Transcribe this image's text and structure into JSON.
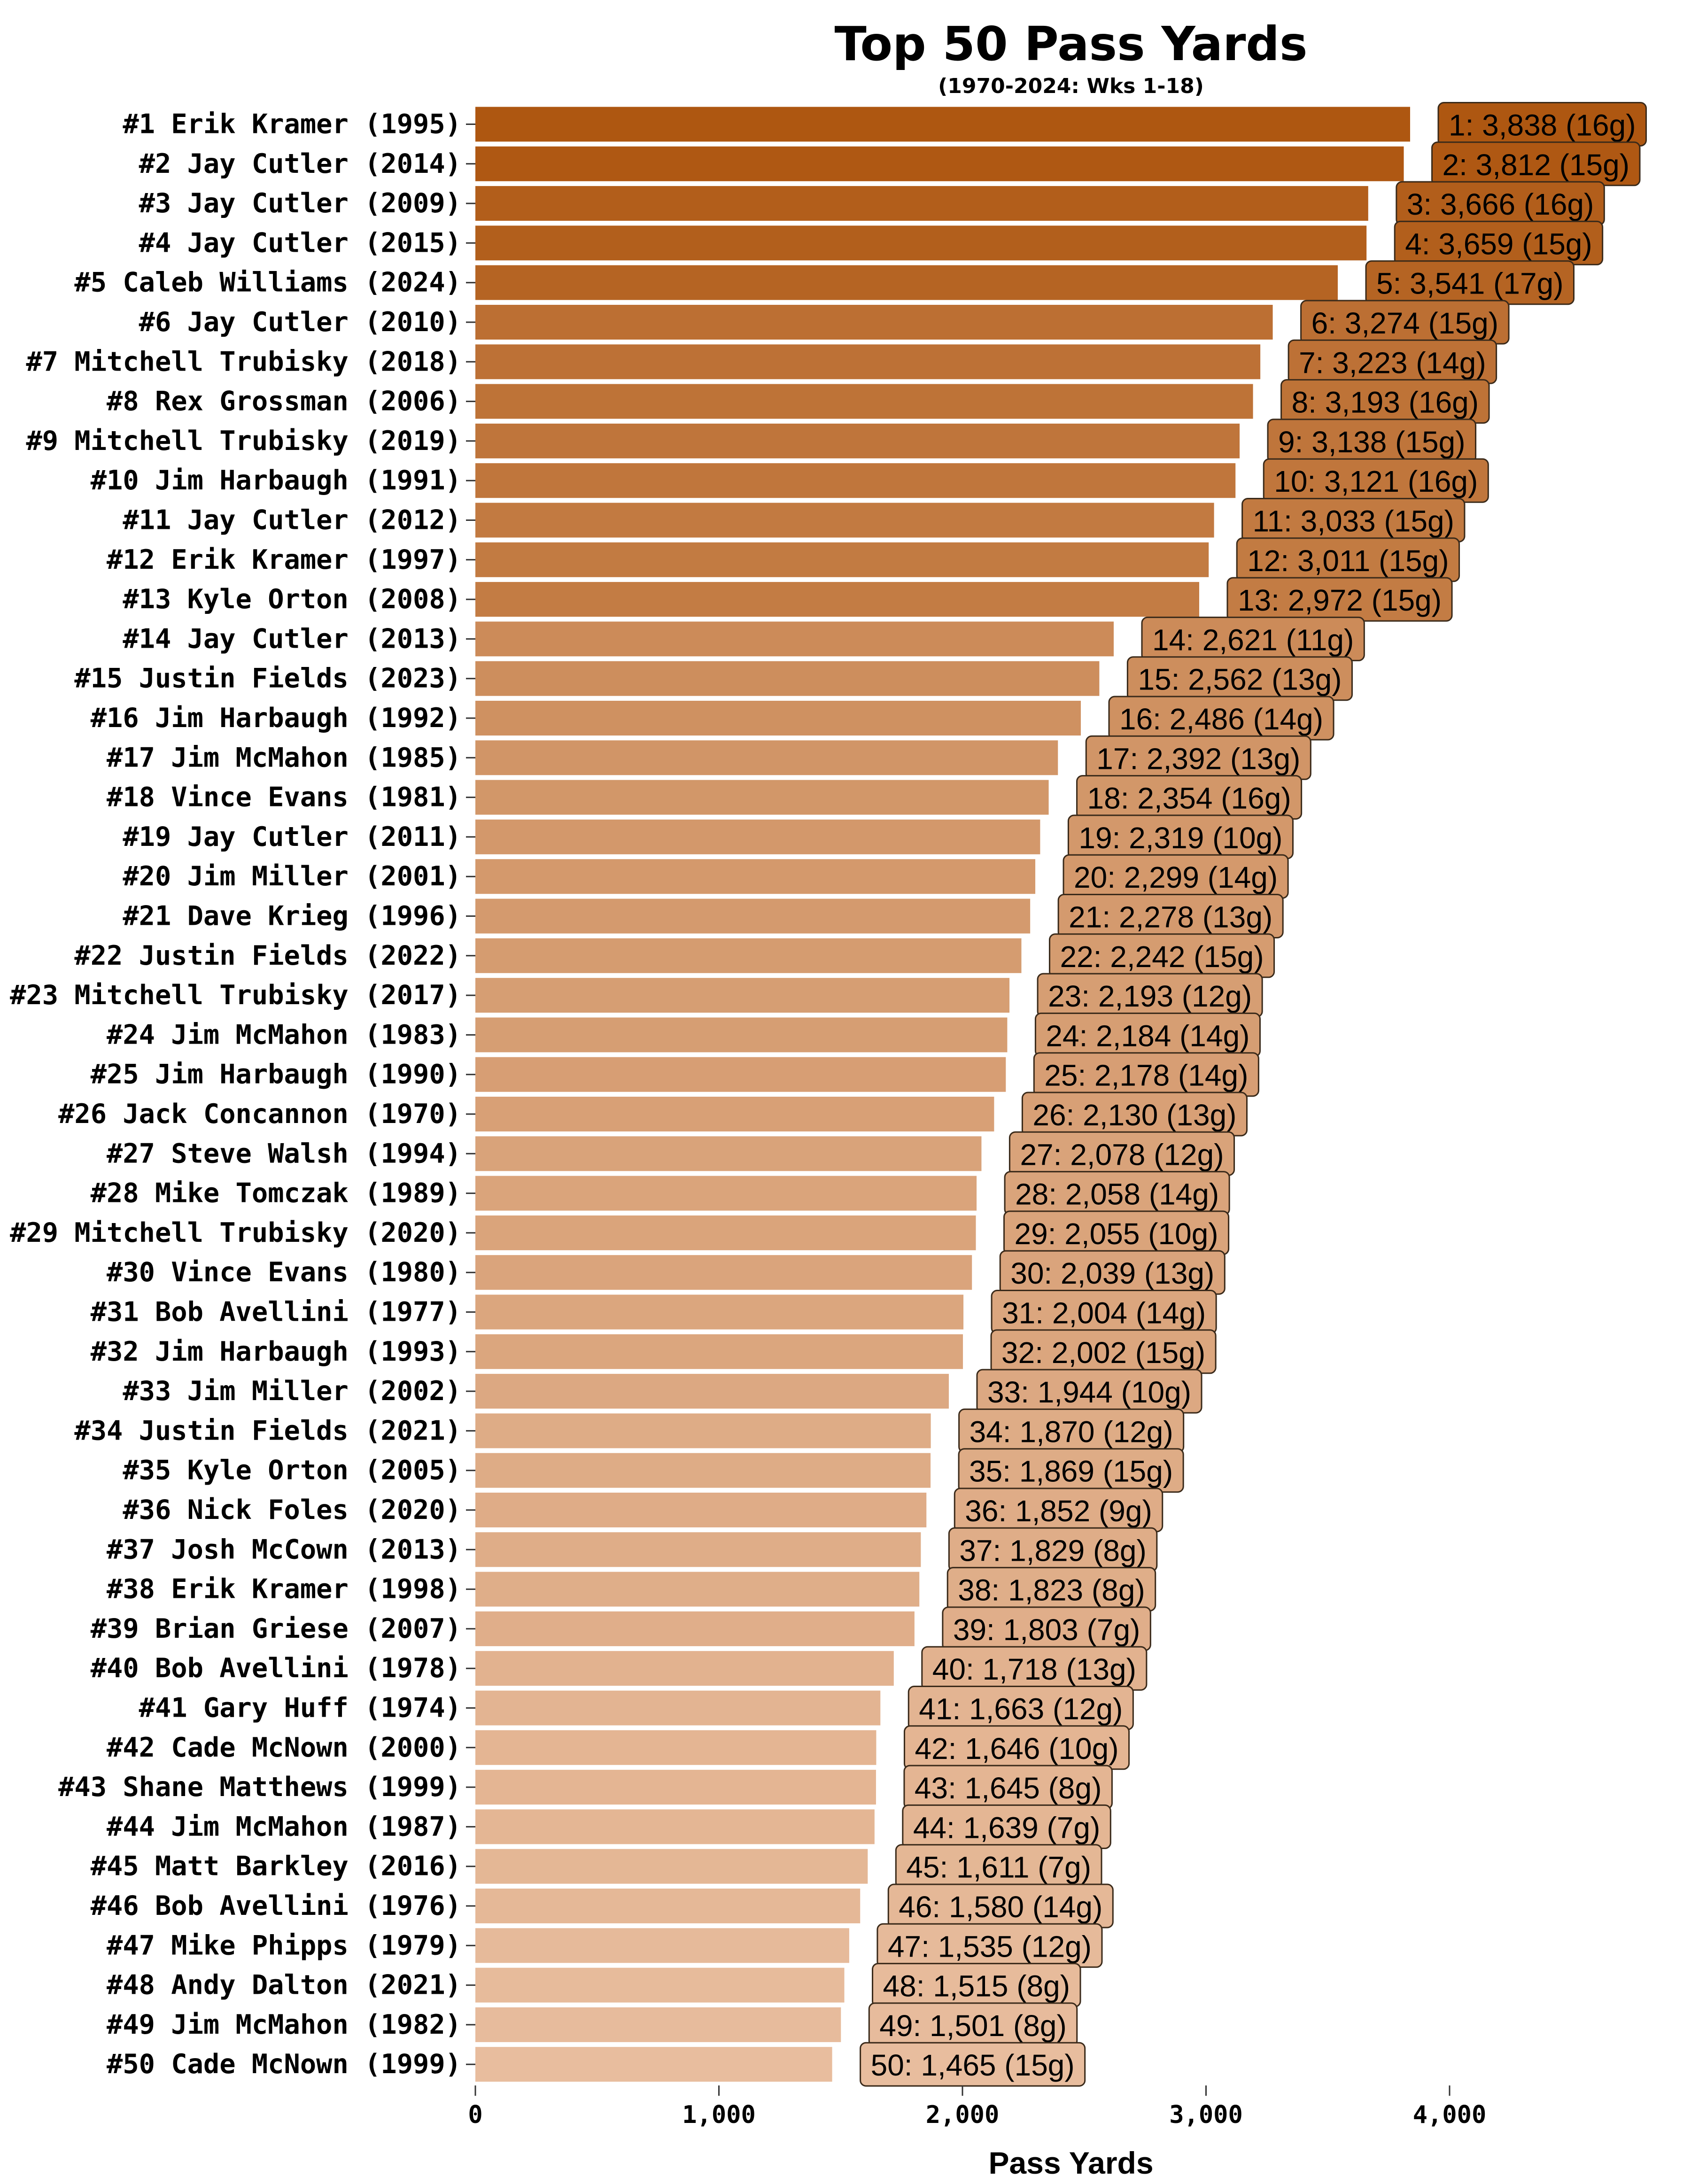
{
  "chart_data": {
    "type": "bar",
    "orientation": "horizontal",
    "title": "Top 50 Pass Yards",
    "subtitle": "(1970-2024: Wks 1-18)",
    "xlabel": "Pass Yards",
    "ylabel": "",
    "xlim": [
      0,
      4800
    ],
    "xticks": [
      0,
      1000,
      2000,
      3000,
      4000
    ],
    "xtick_labels": [
      "0",
      "1,000",
      "2,000",
      "3,000",
      "4,000"
    ],
    "grid": false,
    "legend": "none",
    "colors": {
      "high": "#AE5711",
      "low": "#E8BD9E",
      "label_border": "#3a2a1a"
    },
    "categories": [
      "#1 Erik Kramer (1995)",
      "#2 Jay Cutler (2014)",
      "#3 Jay Cutler (2009)",
      "#4 Jay Cutler (2015)",
      "#5 Caleb Williams (2024)",
      "#6 Jay Cutler (2010)",
      "#7 Mitchell Trubisky (2018)",
      "#8 Rex Grossman (2006)",
      "#9 Mitchell Trubisky (2019)",
      "#10 Jim Harbaugh (1991)",
      "#11 Jay Cutler (2012)",
      "#12 Erik Kramer (1997)",
      "#13 Kyle Orton (2008)",
      "#14 Jay Cutler (2013)",
      "#15 Justin Fields (2023)",
      "#16 Jim Harbaugh (1992)",
      "#17 Jim McMahon (1985)",
      "#18 Vince Evans (1981)",
      "#19 Jay Cutler (2011)",
      "#20 Jim Miller (2001)",
      "#21 Dave Krieg (1996)",
      "#22 Justin Fields (2022)",
      "#23 Mitchell Trubisky (2017)",
      "#24 Jim McMahon (1983)",
      "#25 Jim Harbaugh (1990)",
      "#26 Jack Concannon (1970)",
      "#27 Steve Walsh (1994)",
      "#28 Mike Tomczak (1989)",
      "#29 Mitchell Trubisky (2020)",
      "#30 Vince Evans (1980)",
      "#31 Bob Avellini (1977)",
      "#32 Jim Harbaugh (1993)",
      "#33 Jim Miller (2002)",
      "#34 Justin Fields (2021)",
      "#35 Kyle Orton (2005)",
      "#36 Nick Foles (2020)",
      "#37 Josh McCown (2013)",
      "#38 Erik Kramer (1998)",
      "#39 Brian Griese (2007)",
      "#40 Bob Avellini (1978)",
      "#41 Gary Huff (1974)",
      "#42 Cade McNown (2000)",
      "#43 Shane Matthews (1999)",
      "#44 Jim McMahon (1987)",
      "#45 Matt Barkley (2016)",
      "#46 Bob Avellini (1976)",
      "#47 Mike Phipps (1979)",
      "#48 Andy Dalton (2021)",
      "#49 Jim McMahon (1982)",
      "#50 Cade McNown (1999)"
    ],
    "values": [
      3838,
      3812,
      3666,
      3659,
      3541,
      3274,
      3223,
      3193,
      3138,
      3121,
      3033,
      3011,
      2972,
      2621,
      2562,
      2486,
      2392,
      2354,
      2319,
      2299,
      2278,
      2242,
      2193,
      2184,
      2178,
      2130,
      2078,
      2058,
      2055,
      2039,
      2004,
      2002,
      1944,
      1870,
      1869,
      1852,
      1829,
      1823,
      1803,
      1718,
      1663,
      1646,
      1645,
      1639,
      1611,
      1580,
      1535,
      1515,
      1501,
      1465
    ],
    "data_labels": [
      "1: 3,838 (16g)",
      "2: 3,812 (15g)",
      "3: 3,666 (16g)",
      "4: 3,659 (15g)",
      "5: 3,541 (17g)",
      "6: 3,274 (15g)",
      "7: 3,223 (14g)",
      "8: 3,193 (16g)",
      "9: 3,138 (15g)",
      "10: 3,121 (16g)",
      "11: 3,033 (15g)",
      "12: 3,011 (15g)",
      "13: 2,972 (15g)",
      "14: 2,621 (11g)",
      "15: 2,562 (13g)",
      "16: 2,486 (14g)",
      "17: 2,392 (13g)",
      "18: 2,354 (16g)",
      "19: 2,319 (10g)",
      "20: 2,299 (14g)",
      "21: 2,278 (13g)",
      "22: 2,242 (15g)",
      "23: 2,193 (12g)",
      "24: 2,184 (14g)",
      "25: 2,178 (14g)",
      "26: 2,130 (13g)",
      "27: 2,078 (12g)",
      "28: 2,058 (14g)",
      "29: 2,055 (10g)",
      "30: 2,039 (13g)",
      "31: 2,004 (14g)",
      "32: 2,002 (15g)",
      "33: 1,944 (10g)",
      "34: 1,870 (12g)",
      "35: 1,869 (15g)",
      "36: 1,852 (9g)",
      "37: 1,829 (8g)",
      "38: 1,823 (8g)",
      "39: 1,803 (7g)",
      "40: 1,718 (13g)",
      "41: 1,663 (12g)",
      "42: 1,646 (10g)",
      "43: 1,645 (8g)",
      "44: 1,639 (7g)",
      "45: 1,611 (7g)",
      "46: 1,580 (14g)",
      "47: 1,535 (12g)",
      "48: 1,515 (8g)",
      "49: 1,501 (8g)",
      "50: 1,465 (15g)"
    ]
  }
}
